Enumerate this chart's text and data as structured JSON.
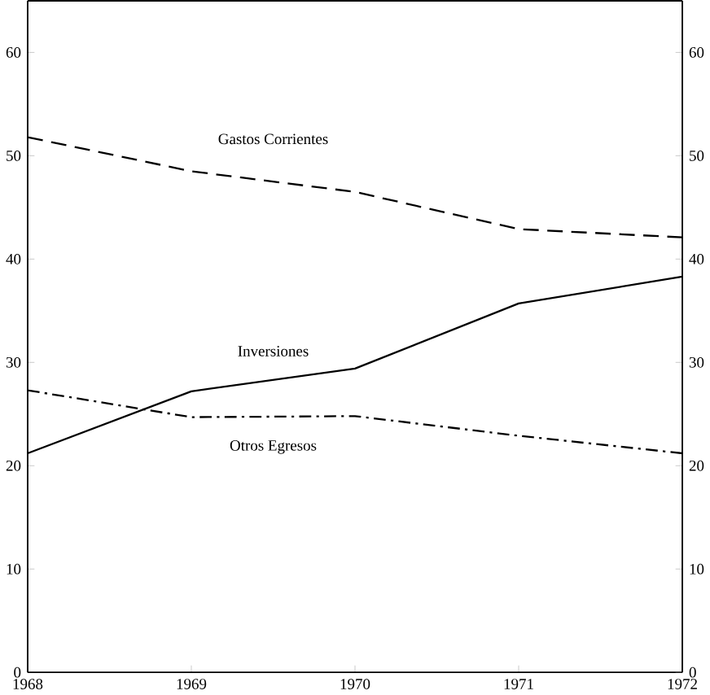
{
  "chart_data": {
    "type": "line",
    "x": [
      1968,
      1969,
      1970,
      1971,
      1972
    ],
    "xlim": [
      1968,
      1972
    ],
    "xticks": [
      1968,
      1969,
      1970,
      1971,
      1972
    ],
    "ylim": [
      0,
      65
    ],
    "yticks": [
      0,
      10,
      20,
      30,
      40,
      50,
      60
    ],
    "y2lim": [
      0,
      65
    ],
    "y2ticks": [
      0,
      10,
      20,
      30,
      40,
      50,
      60
    ],
    "grid": false,
    "legend": false,
    "marker": "none",
    "series": [
      {
        "name": "Gastos Corrientes",
        "color": "#000000",
        "line_style": "dashed",
        "values": [
          51.8,
          48.5,
          46.5,
          42.9,
          42.1
        ]
      },
      {
        "name": "Inversiones",
        "color": "#000000",
        "line_style": "solid",
        "values": [
          21.2,
          27.2,
          29.4,
          35.7,
          38.3
        ]
      },
      {
        "name": "Otros Egresos",
        "color": "#000000",
        "line_style": "dashdot",
        "values": [
          27.3,
          24.7,
          24.8,
          22.9,
          21.2
        ]
      }
    ]
  }
}
